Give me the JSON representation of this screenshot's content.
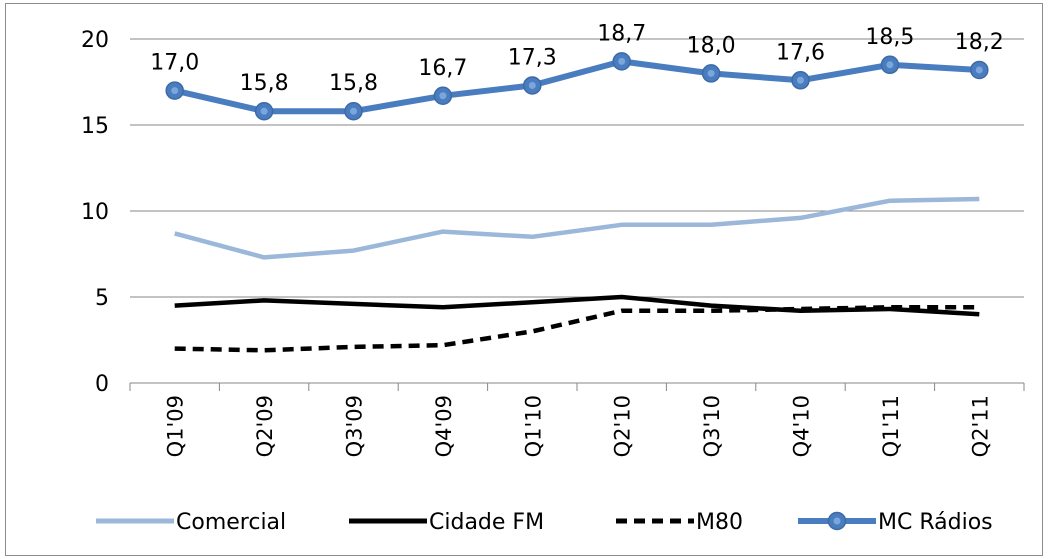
{
  "chart_data": {
    "type": "line",
    "categories": [
      "Q1'09",
      "Q2'09",
      "Q3'09",
      "Q4'09",
      "Q1'10",
      "Q2'10",
      "Q3'10",
      "Q4'10",
      "Q1'11",
      "Q2'11"
    ],
    "y_ticks": [
      "0",
      "5",
      "10",
      "15",
      "20"
    ],
    "ylim": [
      0,
      20
    ],
    "grid": true,
    "legend_position": "bottom",
    "series": [
      {
        "name": "Comercial",
        "values": [
          8.7,
          7.3,
          7.7,
          8.8,
          8.5,
          9.2,
          9.2,
          9.6,
          10.6,
          10.7
        ],
        "color": "#9bb7d9",
        "style": "solid",
        "markers": false,
        "data_labels": null
      },
      {
        "name": "Cidade FM",
        "values": [
          4.5,
          4.8,
          4.6,
          4.4,
          4.7,
          5.0,
          4.5,
          4.2,
          4.3,
          4.0
        ],
        "color": "#000000",
        "style": "solid",
        "markers": false,
        "data_labels": null
      },
      {
        "name": "M80",
        "values": [
          2.0,
          1.9,
          2.1,
          2.2,
          3.0,
          4.2,
          4.2,
          4.3,
          4.4,
          4.4
        ],
        "color": "#000000",
        "style": "dashed",
        "markers": false,
        "data_labels": null
      },
      {
        "name": "MC Rádios",
        "values": [
          17.0,
          15.8,
          15.8,
          16.7,
          17.3,
          18.7,
          18.0,
          17.6,
          18.5,
          18.2
        ],
        "color": "#4a7dbf",
        "style": "solid",
        "markers": true,
        "data_labels": [
          "17,0",
          "15,8",
          "15,8",
          "16,7",
          "17,3",
          "18,7",
          "18,0",
          "17,6",
          "18,5",
          "18,2"
        ]
      }
    ]
  }
}
